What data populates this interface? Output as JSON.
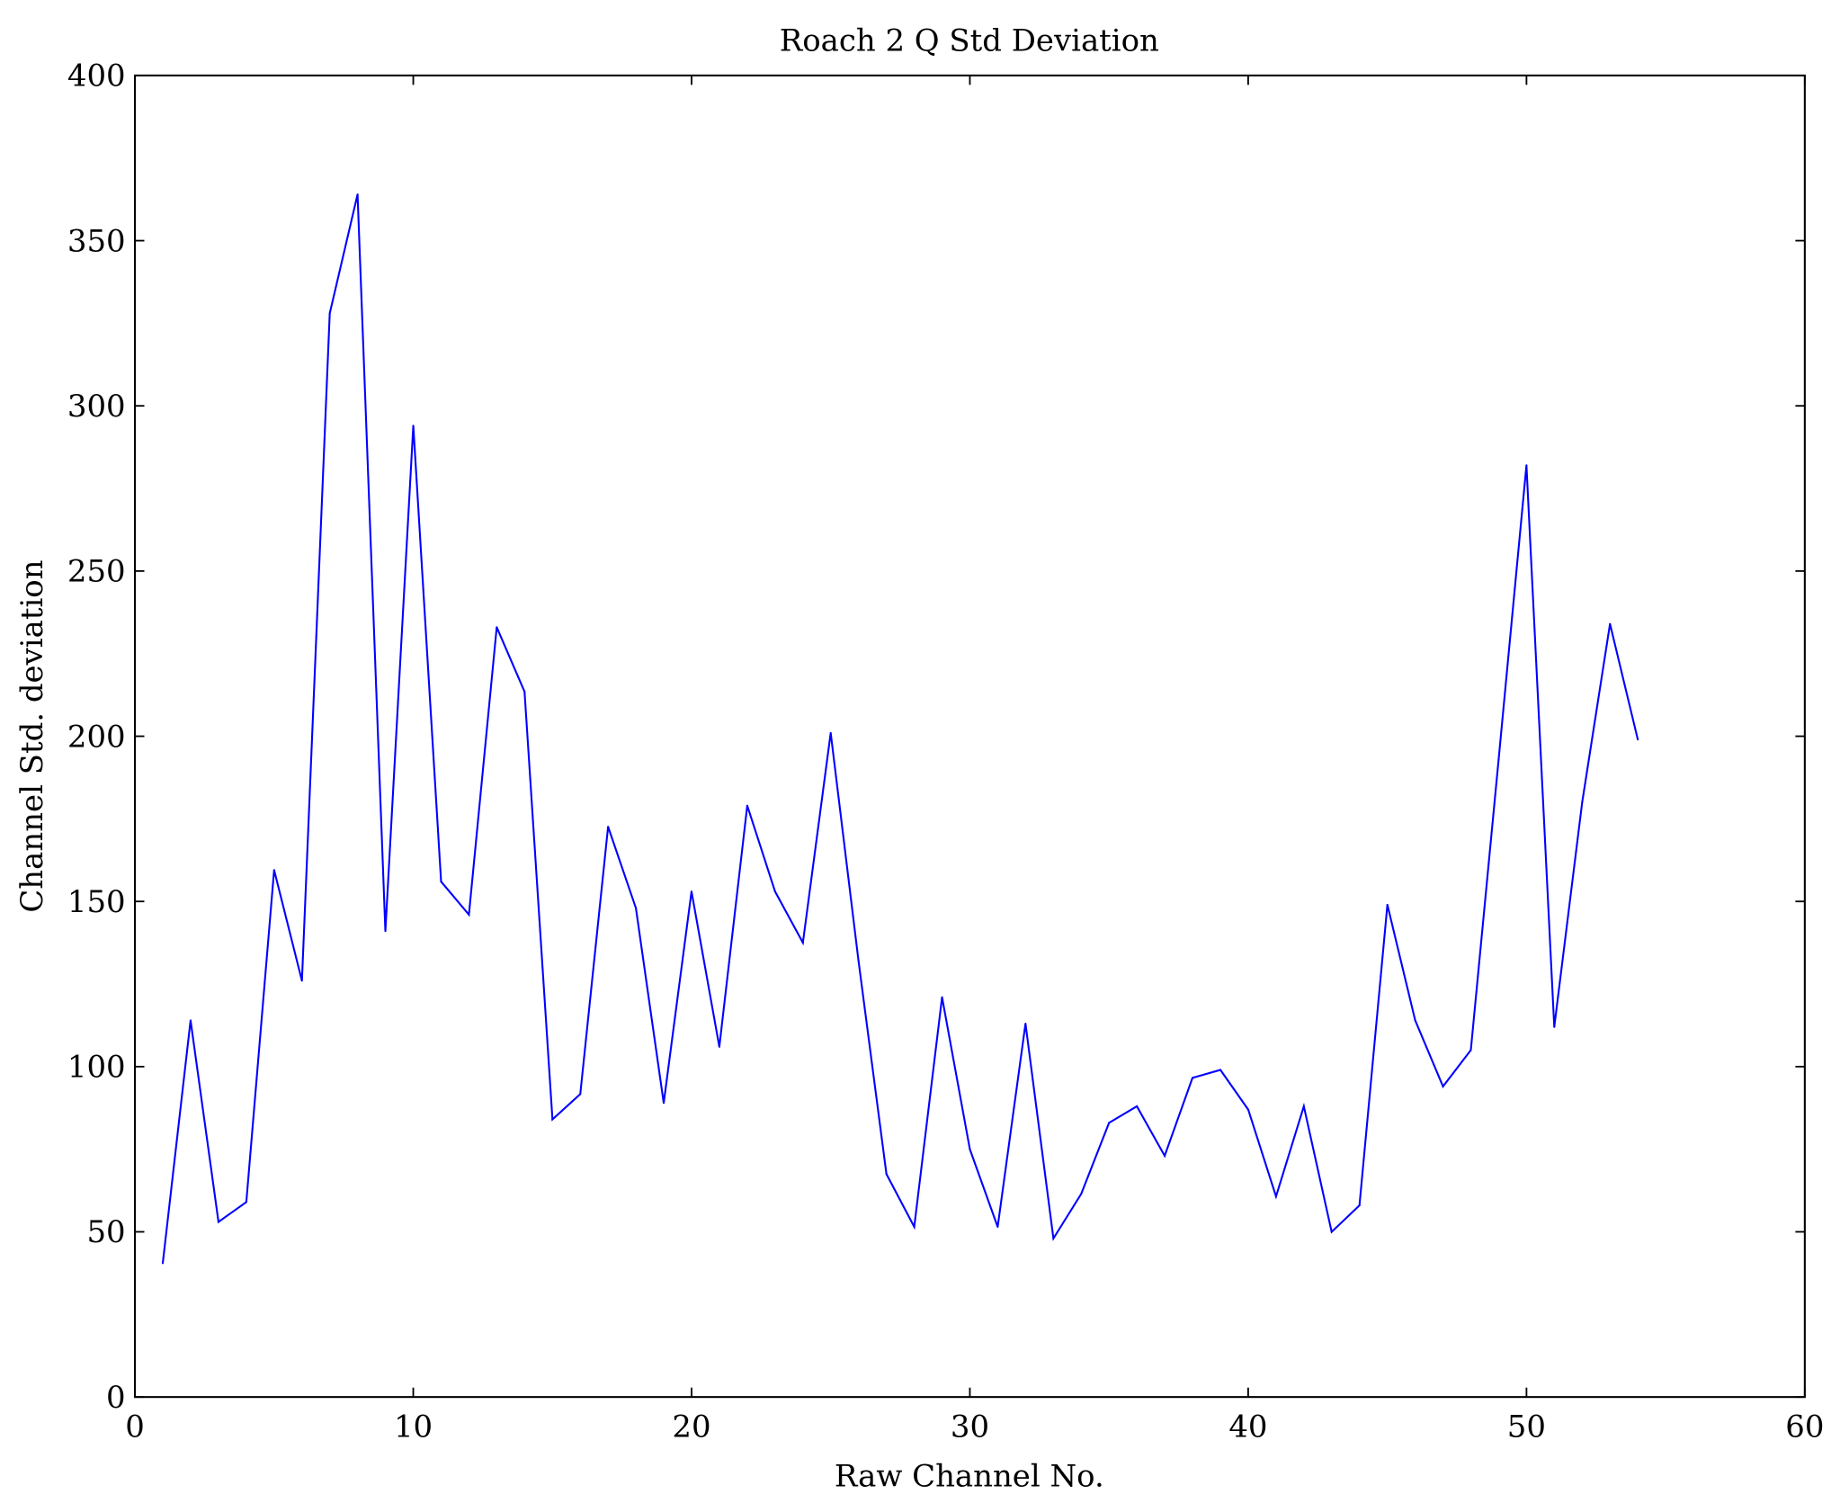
{
  "chart_data": {
    "type": "line",
    "title": "Roach 2 Q Std Deviation",
    "xlabel": "Raw Channel No.",
    "ylabel": "Channel Std. deviation",
    "xlim": [
      0,
      60
    ],
    "ylim": [
      0,
      400
    ],
    "xticks": [
      0,
      10,
      20,
      30,
      40,
      50,
      60
    ],
    "yticks": [
      0,
      50,
      100,
      150,
      200,
      250,
      300,
      350,
      400
    ],
    "grid": false,
    "series": [
      {
        "name": "Q std",
        "color": "#0000ff",
        "x": [
          1,
          2,
          3,
          4,
          5,
          6,
          7,
          8,
          9,
          10,
          11,
          12,
          13,
          14,
          15,
          16,
          17,
          18,
          19,
          20,
          21,
          22,
          23,
          24,
          25,
          26,
          27,
          28,
          29,
          30,
          31,
          32,
          33,
          34,
          35,
          36,
          37,
          38,
          39,
          40,
          41,
          42,
          43,
          44,
          45,
          46,
          47,
          48,
          49,
          50,
          51,
          52,
          53,
          54
        ],
        "values": [
          40.5,
          114,
          53,
          59,
          159.5,
          126,
          328,
          364,
          141,
          294,
          156,
          146,
          233,
          213.5,
          84,
          91.7,
          172.6,
          148,
          89,
          153,
          106,
          179,
          153,
          137.5,
          201,
          132,
          67.5,
          51.5,
          121,
          75,
          51.5,
          113,
          48,
          61.5,
          83,
          88,
          73,
          96.6,
          99,
          87,
          60.7,
          88,
          50,
          58,
          149,
          114,
          94,
          105,
          193,
          282,
          112,
          180,
          234,
          199
        ]
      }
    ]
  }
}
